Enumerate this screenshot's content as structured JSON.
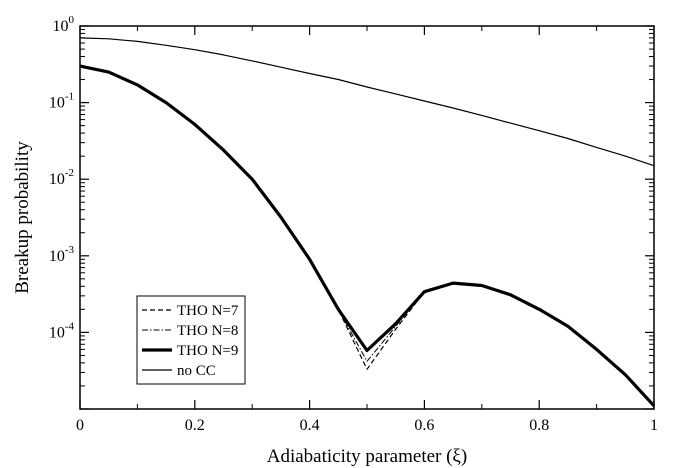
{
  "chart_data": {
    "type": "line",
    "title": "",
    "xlabel": "Adiabaticity parameter (ξ)",
    "ylabel": "Breakup  probability",
    "xscale": "linear",
    "yscale": "log",
    "xlim": [
      0,
      1
    ],
    "ylim": [
      1e-05,
      1
    ],
    "grid": false,
    "legend_position": "bottom-left",
    "x_ticks": [
      {
        "v": 0,
        "label": "0"
      },
      {
        "v": 0.2,
        "label": "0.2"
      },
      {
        "v": 0.4,
        "label": "0.4"
      },
      {
        "v": 0.6,
        "label": "0.6"
      },
      {
        "v": 0.8,
        "label": "0.8"
      },
      {
        "v": 1,
        "label": "1"
      }
    ],
    "y_ticks": [
      {
        "exp": -4,
        "base": "10",
        "sup": "-4"
      },
      {
        "exp": -3,
        "base": "10",
        "sup": "-3"
      },
      {
        "exp": -2,
        "base": "10",
        "sup": "-2"
      },
      {
        "exp": -1,
        "base": "10",
        "sup": "-1"
      },
      {
        "exp": 0,
        "base": "10",
        "sup": "0"
      }
    ],
    "series": [
      {
        "name": "THO N=7",
        "style": "dashed",
        "color": "#000000",
        "x": [
          0,
          0.05,
          0.1,
          0.15,
          0.2,
          0.25,
          0.3,
          0.35,
          0.4,
          0.45,
          0.5,
          0.55,
          0.6,
          0.65,
          0.7,
          0.75,
          0.8,
          0.85,
          0.9,
          0.95,
          1.0
        ],
        "y": [
          0.3,
          0.25,
          0.17,
          0.1,
          0.052,
          0.024,
          0.01,
          0.0032,
          0.0009,
          0.0002,
          3.3e-05,
          0.00011,
          0.00034,
          0.00044,
          0.00041,
          0.00031,
          0.0002,
          0.00012,
          6e-05,
          2.8e-05,
          1.1e-05
        ]
      },
      {
        "name": "THO N=8",
        "style": "dashdot",
        "color": "#000000",
        "x": [
          0,
          0.05,
          0.1,
          0.15,
          0.2,
          0.25,
          0.3,
          0.35,
          0.4,
          0.45,
          0.5,
          0.55,
          0.6,
          0.65,
          0.7,
          0.75,
          0.8,
          0.85,
          0.9,
          0.95,
          1.0
        ],
        "y": [
          0.3,
          0.25,
          0.17,
          0.1,
          0.052,
          0.024,
          0.01,
          0.0032,
          0.0009,
          0.0002,
          4.2e-05,
          0.00012,
          0.00034,
          0.00044,
          0.00041,
          0.00031,
          0.0002,
          0.00012,
          6e-05,
          2.8e-05,
          1.1e-05
        ]
      },
      {
        "name": "THO N=9",
        "style": "thick",
        "color": "#000000",
        "x": [
          0,
          0.05,
          0.1,
          0.15,
          0.2,
          0.25,
          0.3,
          0.35,
          0.4,
          0.45,
          0.5,
          0.55,
          0.6,
          0.65,
          0.7,
          0.75,
          0.8,
          0.85,
          0.9,
          0.95,
          1.0
        ],
        "y": [
          0.3,
          0.25,
          0.17,
          0.1,
          0.052,
          0.024,
          0.01,
          0.0032,
          0.0009,
          0.0002,
          5.8e-05,
          0.00013,
          0.00034,
          0.00044,
          0.00041,
          0.00031,
          0.0002,
          0.00012,
          6e-05,
          2.8e-05,
          1.1e-05
        ]
      },
      {
        "name": "no CC",
        "style": "solid",
        "color": "#000000",
        "x": [
          0,
          0.05,
          0.1,
          0.15,
          0.2,
          0.25,
          0.3,
          0.35,
          0.4,
          0.45,
          0.5,
          0.55,
          0.6,
          0.65,
          0.7,
          0.75,
          0.8,
          0.85,
          0.9,
          0.95,
          1.0
        ],
        "y": [
          0.7,
          0.68,
          0.63,
          0.56,
          0.49,
          0.42,
          0.35,
          0.29,
          0.24,
          0.2,
          0.16,
          0.13,
          0.105,
          0.085,
          0.068,
          0.054,
          0.043,
          0.034,
          0.026,
          0.02,
          0.015
        ]
      }
    ]
  }
}
